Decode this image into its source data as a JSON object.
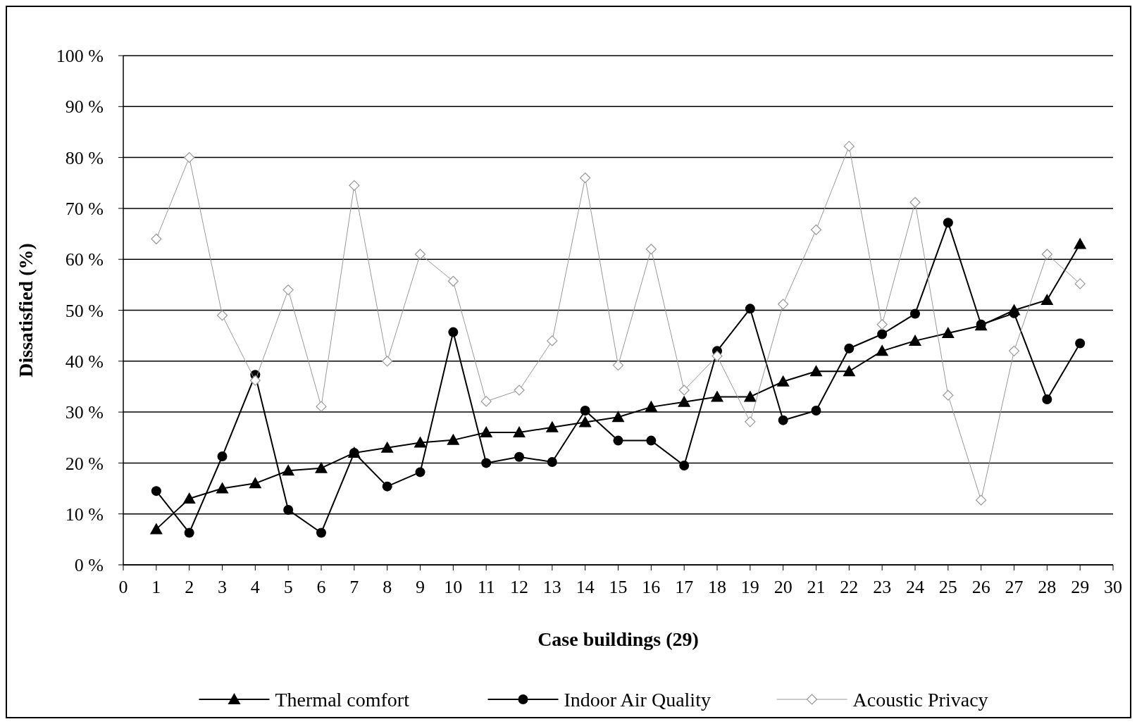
{
  "chart_data": {
    "type": "line",
    "xlabel": "Case buildings (29)",
    "ylabel": "Dissatisfied (%)",
    "x": [
      1,
      2,
      3,
      4,
      5,
      6,
      7,
      8,
      9,
      10,
      11,
      12,
      13,
      14,
      15,
      16,
      17,
      18,
      19,
      20,
      21,
      22,
      23,
      24,
      25,
      26,
      27,
      28,
      29
    ],
    "xlim": [
      0,
      30
    ],
    "xticks": [
      0,
      1,
      2,
      3,
      4,
      5,
      6,
      7,
      8,
      9,
      10,
      11,
      12,
      13,
      14,
      15,
      16,
      17,
      18,
      19,
      20,
      21,
      22,
      23,
      24,
      25,
      26,
      27,
      28,
      29,
      30
    ],
    "ylim": [
      0,
      100
    ],
    "yticks": [
      {
        "value": 0,
        "label": "0 %"
      },
      {
        "value": 10,
        "label": "10 %"
      },
      {
        "value": 20,
        "label": "20 %"
      },
      {
        "value": 30,
        "label": "30 %"
      },
      {
        "value": 40,
        "label": "40 %"
      },
      {
        "value": 50,
        "label": "50 %"
      },
      {
        "value": 60,
        "label": "60 %"
      },
      {
        "value": 70,
        "label": "70 %"
      },
      {
        "value": 80,
        "label": "80 %"
      },
      {
        "value": 90,
        "label": "90 %"
      },
      {
        "value": 100,
        "label": "100 %"
      }
    ],
    "grid": "y",
    "legend": "bottom",
    "series": [
      {
        "name": "Thermal comfort",
        "color": "#000000",
        "marker": "triangle",
        "values": [
          7,
          13,
          15,
          16,
          18.5,
          19,
          22,
          23,
          24,
          24.5,
          26,
          26,
          27,
          28,
          29,
          31,
          32,
          33,
          33,
          36,
          38,
          38,
          42,
          44,
          45.5,
          47,
          50,
          52,
          63
        ]
      },
      {
        "name": "Indoor Air Quality",
        "color": "#000000",
        "marker": "circle",
        "values": [
          14.5,
          6.3,
          21.3,
          37.3,
          10.8,
          6.3,
          22,
          15.4,
          18.2,
          45.7,
          20,
          21.2,
          20.2,
          30.3,
          24.4,
          24.4,
          19.5,
          42,
          50.3,
          28.4,
          30.3,
          42.5,
          45.3,
          49.3,
          67.2,
          47.2,
          49.4,
          32.5,
          43.5
        ]
      },
      {
        "name": "Acoustic Privacy",
        "color": "#999999",
        "marker": "diamond",
        "values": [
          64,
          80,
          49,
          36.2,
          54,
          31.1,
          74.5,
          40,
          61,
          55.7,
          32.1,
          34.3,
          44,
          76,
          39.2,
          62,
          34.3,
          41,
          28.1,
          51.2,
          65.8,
          82.2,
          47.2,
          71.2,
          33.3,
          12.7,
          42,
          61,
          55.2
        ]
      }
    ]
  }
}
